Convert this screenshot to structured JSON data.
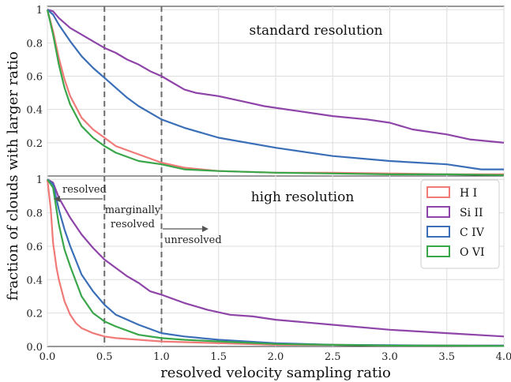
{
  "chart_data": {
    "type": "line",
    "xlabel": "resolved velocity sampling ratio",
    "ylabel": "fraction of clouds with larger ratio",
    "xlim": [
      0.0,
      4.0
    ],
    "ylim": [
      0.0,
      1.02
    ],
    "x_ticks": [
      "0.0",
      "0.5",
      "1.0",
      "1.5",
      "2.0",
      "2.5",
      "3.0",
      "3.5",
      "4.0"
    ],
    "grid": true,
    "vlines": [
      0.5,
      1.0
    ],
    "annotations": [
      {
        "text": "resolved",
        "direction": "left"
      },
      {
        "text": "marginally",
        "direction": "none"
      },
      {
        "text": "resolved",
        "direction": "none"
      },
      {
        "text": "unresolved",
        "direction": "right"
      }
    ],
    "legend": {
      "placement": "top-right of bottom panel",
      "entries": [
        "H I",
        "Si II",
        "C IV",
        "O VI"
      ]
    },
    "colors": {
      "H I": "#f07a78",
      "Si II": "#8e44a8",
      "C IV": "#3a6fb8",
      "O VI": "#3aa64a",
      "vline": "#6b6b6b",
      "grid": "#dddddd"
    },
    "panels": [
      {
        "title": "standard resolution",
        "y_ticks": [
          "0.2",
          "0.4",
          "0.6",
          "0.8",
          "1"
        ],
        "series": [
          {
            "name": "H I",
            "x": [
              0,
              0.05,
              0.1,
              0.15,
              0.2,
              0.3,
              0.4,
              0.5,
              0.6,
              0.8,
              1.0,
              1.2,
              1.5,
              2.0,
              2.5,
              3.0,
              3.5,
              4.0
            ],
            "y": [
              1.0,
              0.87,
              0.71,
              0.58,
              0.48,
              0.35,
              0.28,
              0.23,
              0.18,
              0.13,
              0.08,
              0.05,
              0.03,
              0.02,
              0.02,
              0.015,
              0.01,
              0.01
            ]
          },
          {
            "name": "Si II",
            "x": [
              0,
              0.05,
              0.1,
              0.2,
              0.3,
              0.4,
              0.5,
              0.6,
              0.7,
              0.8,
              0.9,
              1.0,
              1.1,
              1.2,
              1.3,
              1.5,
              1.7,
              1.9,
              2.0,
              2.2,
              2.5,
              2.8,
              3.0,
              3.2,
              3.5,
              3.7,
              4.0
            ],
            "y": [
              1.0,
              0.99,
              0.95,
              0.89,
              0.85,
              0.81,
              0.77,
              0.74,
              0.7,
              0.67,
              0.63,
              0.6,
              0.56,
              0.52,
              0.5,
              0.48,
              0.45,
              0.42,
              0.41,
              0.39,
              0.36,
              0.34,
              0.32,
              0.28,
              0.25,
              0.22,
              0.2
            ]
          },
          {
            "name": "C IV",
            "x": [
              0,
              0.05,
              0.1,
              0.2,
              0.3,
              0.4,
              0.5,
              0.6,
              0.7,
              0.8,
              0.9,
              1.0,
              1.2,
              1.5,
              2.0,
              2.5,
              3.0,
              3.5,
              3.8,
              4.0
            ],
            "y": [
              1.0,
              0.97,
              0.91,
              0.81,
              0.72,
              0.65,
              0.59,
              0.53,
              0.47,
              0.42,
              0.38,
              0.34,
              0.29,
              0.23,
              0.17,
              0.12,
              0.09,
              0.07,
              0.04,
              0.04
            ]
          },
          {
            "name": "O VI",
            "x": [
              0,
              0.05,
              0.1,
              0.15,
              0.2,
              0.3,
              0.4,
              0.5,
              0.6,
              0.8,
              1.0,
              1.2,
              1.5,
              2.0,
              2.5,
              3.0,
              3.5,
              4.0
            ],
            "y": [
              1.0,
              0.85,
              0.67,
              0.53,
              0.43,
              0.3,
              0.23,
              0.18,
              0.14,
              0.09,
              0.07,
              0.04,
              0.03,
              0.02,
              0.015,
              0.01,
              0.01,
              0.005
            ]
          }
        ]
      },
      {
        "title": "high resolution",
        "y_ticks": [
          "0.0",
          "0.2",
          "0.4",
          "0.6",
          "0.8",
          "1"
        ],
        "series": [
          {
            "name": "H I",
            "x": [
              0,
              0.03,
              0.05,
              0.08,
              0.1,
              0.15,
              0.2,
              0.25,
              0.3,
              0.4,
              0.5,
              0.6,
              0.8,
              1.0,
              1.5,
              2.0,
              2.5,
              3.0,
              4.0
            ],
            "y": [
              1.0,
              0.82,
              0.62,
              0.47,
              0.4,
              0.27,
              0.19,
              0.14,
              0.11,
              0.08,
              0.06,
              0.05,
              0.04,
              0.03,
              0.02,
              0.01,
              0.01,
              0.005,
              0.005
            ]
          },
          {
            "name": "Si II",
            "x": [
              0,
              0.05,
              0.1,
              0.2,
              0.3,
              0.4,
              0.5,
              0.6,
              0.7,
              0.8,
              0.9,
              1.0,
              1.2,
              1.4,
              1.6,
              1.8,
              2.0,
              2.5,
              3.0,
              3.5,
              4.0
            ],
            "y": [
              1.0,
              0.98,
              0.89,
              0.77,
              0.67,
              0.59,
              0.52,
              0.47,
              0.42,
              0.38,
              0.33,
              0.31,
              0.26,
              0.22,
              0.19,
              0.18,
              0.16,
              0.13,
              0.1,
              0.08,
              0.06
            ]
          },
          {
            "name": "C IV",
            "x": [
              0,
              0.05,
              0.1,
              0.15,
              0.2,
              0.3,
              0.4,
              0.5,
              0.6,
              0.8,
              1.0,
              1.2,
              1.5,
              2.0,
              2.5,
              3.0,
              3.5,
              4.0
            ],
            "y": [
              1.0,
              0.97,
              0.82,
              0.7,
              0.6,
              0.43,
              0.33,
              0.25,
              0.19,
              0.13,
              0.08,
              0.06,
              0.04,
              0.02,
              0.01,
              0.008,
              0.005,
              0.005
            ]
          },
          {
            "name": "O VI",
            "x": [
              0,
              0.05,
              0.1,
              0.15,
              0.2,
              0.3,
              0.4,
              0.5,
              0.6,
              0.8,
              1.0,
              1.2,
              1.5,
              2.0,
              2.5,
              3.0,
              3.5,
              4.0
            ],
            "y": [
              1.0,
              0.95,
              0.73,
              0.58,
              0.48,
              0.3,
              0.2,
              0.15,
              0.12,
              0.07,
              0.05,
              0.04,
              0.03,
              0.015,
              0.01,
              0.005,
              0.005,
              0.003
            ]
          }
        ]
      }
    ]
  }
}
